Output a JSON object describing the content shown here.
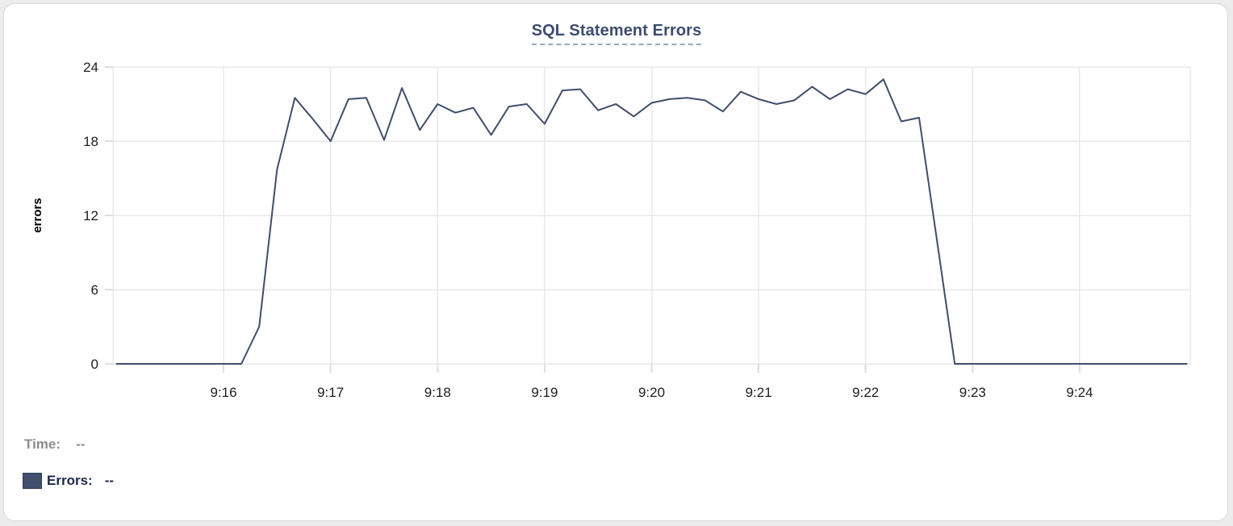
{
  "colors": {
    "page_bg": "#ececec",
    "card_border": "#d9d9d9",
    "line": "#3f4e6b",
    "title": "#3c4d6e",
    "title_underline": "#9aa5bf",
    "grid": "#e9e9e9",
    "tick_mark": "#dedede",
    "axis_text": "#202020",
    "muted_text": "#8c8c8c",
    "legend_text": "#1c2749",
    "swatch_fill": "#41506c"
  },
  "footer": {
    "time_label": "Time:",
    "time_value": "--",
    "errors_label": "Errors:",
    "errors_value": "--"
  },
  "chart_data": {
    "type": "line",
    "title": "SQL Statement Errors",
    "xlabel": "",
    "ylabel": "errors",
    "ylim": [
      0,
      24
    ],
    "yticks": [
      0,
      6,
      12,
      18,
      24
    ],
    "xticks": [
      "9:16",
      "9:17",
      "9:18",
      "9:19",
      "9:20",
      "9:21",
      "9:22",
      "9:23",
      "9:24"
    ],
    "x_domain": [
      "9:14:58",
      "9:25:02"
    ],
    "grid": true,
    "legend_position": "bottom-left",
    "series": [
      {
        "name": "Errors",
        "color": "#3f4e6b",
        "x": [
          "9:15:00",
          "9:15:10",
          "9:15:20",
          "9:15:30",
          "9:15:40",
          "9:15:50",
          "9:16:00",
          "9:16:10",
          "9:16:20",
          "9:16:30",
          "9:16:40",
          "9:16:50",
          "9:17:00",
          "9:17:10",
          "9:17:20",
          "9:17:30",
          "9:17:40",
          "9:17:50",
          "9:18:00",
          "9:18:10",
          "9:18:20",
          "9:18:30",
          "9:18:40",
          "9:18:50",
          "9:19:00",
          "9:19:10",
          "9:19:20",
          "9:19:30",
          "9:19:40",
          "9:19:50",
          "9:20:00",
          "9:20:10",
          "9:20:20",
          "9:20:30",
          "9:20:40",
          "9:20:50",
          "9:21:00",
          "9:21:10",
          "9:21:20",
          "9:21:30",
          "9:21:40",
          "9:21:50",
          "9:22:00",
          "9:22:10",
          "9:22:20",
          "9:22:30",
          "9:22:40",
          "9:22:50",
          "9:23:00",
          "9:23:10",
          "9:23:20",
          "9:23:30",
          "9:23:40",
          "9:23:50",
          "9:24:00",
          "9:24:10",
          "9:24:20",
          "9:24:30",
          "9:24:40",
          "9:24:50",
          "9:25:00"
        ],
        "values": [
          0,
          0,
          0,
          0,
          0,
          0,
          0,
          0,
          3,
          15.7,
          21.5,
          19.8,
          18,
          21.4,
          21.5,
          18.1,
          22.3,
          18.9,
          21,
          20.3,
          20.7,
          18.5,
          20.8,
          21,
          19.4,
          22.1,
          22.2,
          20.5,
          21,
          20,
          21.1,
          21.4,
          21.5,
          21.3,
          20.4,
          22,
          21.4,
          21,
          21.3,
          22.4,
          21.4,
          22.2,
          21.8,
          23,
          19.6,
          19.9,
          10,
          0,
          0,
          0,
          0,
          0,
          0,
          0,
          0,
          0,
          0,
          0,
          0,
          0,
          0
        ]
      }
    ]
  }
}
